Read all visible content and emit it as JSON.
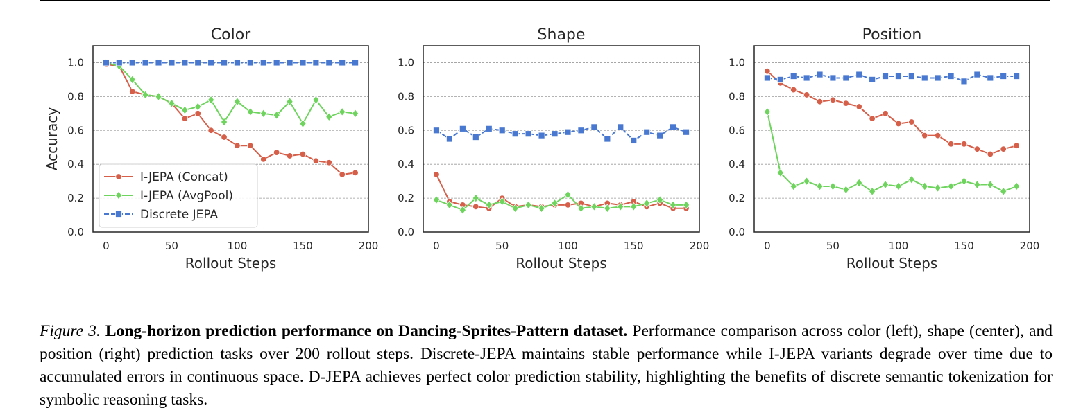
{
  "colors": {
    "concat": "#d65f4a",
    "avgpool": "#6ed45e",
    "discrete": "#4878d0",
    "grid": "#9a9a9a"
  },
  "chart_data": [
    {
      "type": "line",
      "title": "Color",
      "xlabel": "Rollout Steps",
      "ylabel": "Accuracy",
      "xlim": [
        -10,
        200
      ],
      "ylim": [
        0.0,
        1.1
      ],
      "xticks": [
        0,
        50,
        100,
        150,
        200
      ],
      "yticks": [
        "0.0",
        "0.2",
        "0.4",
        "0.6",
        "0.8",
        "1.0"
      ],
      "grid": "horizontal-dashed",
      "legend": "lower-left",
      "x": [
        0,
        10,
        20,
        30,
        40,
        50,
        60,
        70,
        80,
        90,
        100,
        110,
        120,
        130,
        140,
        150,
        160,
        170,
        180,
        190
      ],
      "series": [
        {
          "name": "I-JEPA (Concat)",
          "marker": "circle",
          "values": [
            0.99,
            0.98,
            0.83,
            0.81,
            0.8,
            0.76,
            0.67,
            0.7,
            0.6,
            0.56,
            0.51,
            0.51,
            0.43,
            0.47,
            0.45,
            0.46,
            0.42,
            0.41,
            0.34,
            0.35
          ]
        },
        {
          "name": "I-JEPA (AvgPool)",
          "marker": "diamond",
          "values": [
            1.0,
            0.98,
            0.9,
            0.81,
            0.8,
            0.76,
            0.72,
            0.74,
            0.78,
            0.65,
            0.77,
            0.71,
            0.7,
            0.69,
            0.77,
            0.64,
            0.78,
            0.68,
            0.71,
            0.7
          ]
        },
        {
          "name": "Discrete JEPA",
          "marker": "square",
          "values": [
            1.0,
            1.0,
            1.0,
            1.0,
            1.0,
            1.0,
            1.0,
            1.0,
            1.0,
            1.0,
            1.0,
            1.0,
            1.0,
            1.0,
            1.0,
            1.0,
            1.0,
            1.0,
            1.0,
            1.0
          ]
        }
      ]
    },
    {
      "type": "line",
      "title": "Shape",
      "xlabel": "Rollout Steps",
      "ylabel": "",
      "xlim": [
        -10,
        200
      ],
      "ylim": [
        0.0,
        1.1
      ],
      "xticks": [
        0,
        50,
        100,
        150,
        200
      ],
      "yticks": [
        "0.0",
        "0.2",
        "0.4",
        "0.6",
        "0.8",
        "1.0"
      ],
      "grid": "horizontal-dashed",
      "x": [
        0,
        10,
        20,
        30,
        40,
        50,
        60,
        70,
        80,
        90,
        100,
        110,
        120,
        130,
        140,
        150,
        160,
        170,
        180,
        190
      ],
      "series": [
        {
          "name": "I-JEPA (Concat)",
          "marker": "circle",
          "values": [
            0.34,
            0.18,
            0.16,
            0.15,
            0.14,
            0.2,
            0.15,
            0.16,
            0.15,
            0.16,
            0.16,
            0.17,
            0.15,
            0.17,
            0.16,
            0.18,
            0.15,
            0.17,
            0.14,
            0.14
          ]
        },
        {
          "name": "I-JEPA (AvgPool)",
          "marker": "diamond",
          "values": [
            0.19,
            0.16,
            0.13,
            0.2,
            0.16,
            0.18,
            0.14,
            0.16,
            0.14,
            0.17,
            0.22,
            0.14,
            0.15,
            0.14,
            0.15,
            0.15,
            0.17,
            0.19,
            0.16,
            0.16
          ]
        },
        {
          "name": "Discrete JEPA",
          "marker": "square",
          "values": [
            0.6,
            0.55,
            0.61,
            0.56,
            0.61,
            0.6,
            0.58,
            0.58,
            0.57,
            0.58,
            0.59,
            0.6,
            0.62,
            0.55,
            0.62,
            0.54,
            0.59,
            0.57,
            0.62,
            0.59
          ]
        }
      ]
    },
    {
      "type": "line",
      "title": "Position",
      "xlabel": "Rollout Steps",
      "ylabel": "",
      "xlim": [
        -10,
        200
      ],
      "ylim": [
        0.0,
        1.1
      ],
      "xticks": [
        0,
        50,
        100,
        150,
        200
      ],
      "yticks": [
        "0.0",
        "0.2",
        "0.4",
        "0.6",
        "0.8",
        "1.0"
      ],
      "grid": "horizontal-dashed",
      "x": [
        0,
        10,
        20,
        30,
        40,
        50,
        60,
        70,
        80,
        90,
        100,
        110,
        120,
        130,
        140,
        150,
        160,
        170,
        180,
        190
      ],
      "series": [
        {
          "name": "I-JEPA (Concat)",
          "marker": "circle",
          "values": [
            0.95,
            0.88,
            0.84,
            0.81,
            0.77,
            0.78,
            0.76,
            0.74,
            0.67,
            0.7,
            0.64,
            0.65,
            0.57,
            0.57,
            0.52,
            0.52,
            0.49,
            0.46,
            0.49,
            0.51
          ]
        },
        {
          "name": "I-JEPA (AvgPool)",
          "marker": "diamond",
          "values": [
            0.71,
            0.35,
            0.27,
            0.3,
            0.27,
            0.27,
            0.25,
            0.29,
            0.24,
            0.28,
            0.27,
            0.31,
            0.27,
            0.26,
            0.27,
            0.3,
            0.28,
            0.28,
            0.24,
            0.27
          ]
        },
        {
          "name": "Discrete JEPA",
          "marker": "square",
          "values": [
            0.91,
            0.9,
            0.92,
            0.91,
            0.93,
            0.91,
            0.91,
            0.93,
            0.9,
            0.92,
            0.92,
            0.92,
            0.91,
            0.91,
            0.92,
            0.89,
            0.93,
            0.91,
            0.92,
            0.92
          ]
        }
      ]
    }
  ],
  "caption": {
    "label": "Figure 3.",
    "bold": "Long-horizon prediction performance on Dancing-Sprites-Pattern dataset.",
    "text": "Performance comparison across color (left), shape (center), and position (right) prediction tasks over 200 rollout steps. Discrete-JEPA maintains stable performance while I-JEPA variants degrade over time due to accumulated errors in continuous space. D-JEPA achieves perfect color prediction stability, highlighting the benefits of discrete semantic tokenization for symbolic reasoning tasks."
  }
}
